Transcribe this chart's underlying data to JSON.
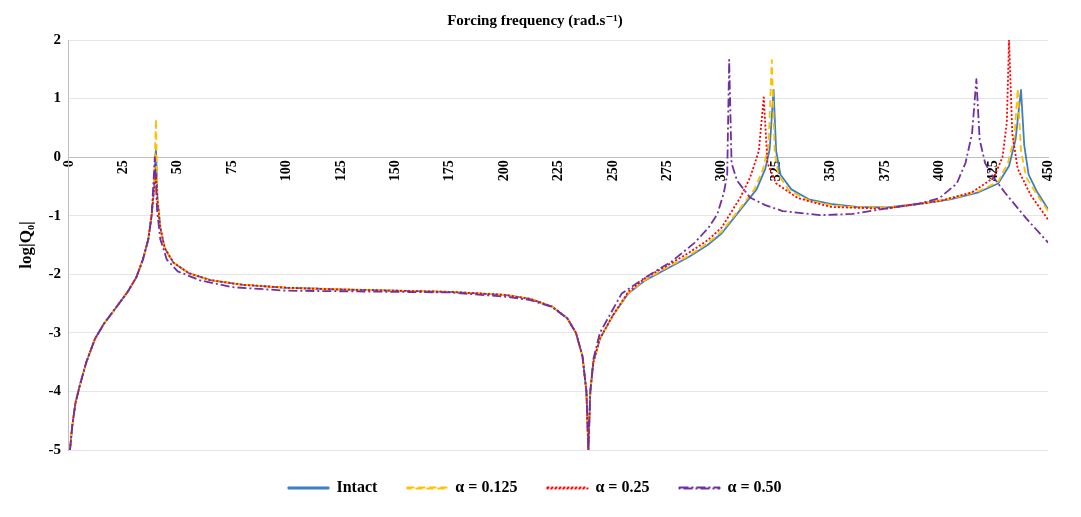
{
  "chart_data": {
    "type": "line",
    "xlabel": "Forcing frequency (rad.s⁻¹)",
    "ylabel": "log|Q₀|",
    "xlim": [
      0,
      450
    ],
    "xticks": [
      0,
      25,
      50,
      75,
      100,
      125,
      150,
      175,
      200,
      225,
      250,
      275,
      300,
      325,
      350,
      375,
      400,
      425,
      450
    ],
    "ylim": [
      -5,
      2
    ],
    "yticks": [
      -5,
      -4,
      -3,
      -2,
      -1,
      0,
      1,
      2
    ],
    "grid": "y",
    "legend": "bottom",
    "marker": "none",
    "series": [
      {
        "name": "Intact",
        "color": "#3d7fc4",
        "line_style": "solid",
        "x": [
          0.5,
          1.5,
          3,
          5,
          8,
          12,
          16,
          21,
          27,
          31,
          34,
          36.5,
          38,
          39,
          40,
          40.7,
          42,
          44,
          48,
          55,
          65,
          80,
          100,
          125,
          150,
          175,
          200,
          212,
          222,
          229,
          233,
          236,
          237.8,
          238.7,
          239.6,
          241,
          244,
          250,
          257,
          265,
          275,
          285,
          293.5,
          300,
          308.5,
          316,
          320,
          322,
          323.8,
          325,
          327,
          332,
          340,
          350,
          362,
          376,
          390,
          405,
          418,
          427,
          432,
          435,
          437.5,
          439,
          441,
          445,
          450
        ],
        "values": [
          -5,
          -4.6,
          -4.2,
          -3.9,
          -3.5,
          -3.1,
          -2.85,
          -2.6,
          -2.3,
          -2.05,
          -1.75,
          -1.4,
          -1.0,
          -0.6,
          0.15,
          -0.7,
          -1.2,
          -1.55,
          -1.8,
          -1.98,
          -2.1,
          -2.18,
          -2.23,
          -2.26,
          -2.28,
          -2.3,
          -2.35,
          -2.42,
          -2.55,
          -2.75,
          -3.0,
          -3.4,
          -4.0,
          -5,
          -4.0,
          -3.5,
          -3.1,
          -2.7,
          -2.33,
          -2.1,
          -1.9,
          -1.7,
          -1.5,
          -1.3,
          -0.9,
          -0.55,
          -0.2,
          0.13,
          1.15,
          0.1,
          -0.3,
          -0.55,
          -0.72,
          -0.8,
          -0.85,
          -0.86,
          -0.8,
          -0.72,
          -0.6,
          -0.45,
          -0.15,
          0.3,
          1.15,
          0.2,
          -0.3,
          -0.6,
          -0.89
        ]
      },
      {
        "name": "α = 0.125",
        "color": "#ffc000",
        "line_style": "dashed",
        "x": [
          0.5,
          1.5,
          3,
          5,
          8,
          12,
          16,
          21,
          27,
          31,
          34,
          36.5,
          38,
          39,
          40,
          40.7,
          42,
          44,
          48,
          55,
          65,
          80,
          100,
          125,
          150,
          175,
          200,
          212,
          222,
          229,
          233,
          236,
          237.8,
          238.7,
          239.6,
          241,
          244,
          250,
          257,
          265,
          275,
          285,
          293.5,
          300,
          308.5,
          315,
          319,
          321.5,
          323,
          324.3,
          326,
          331,
          340,
          350,
          362,
          376,
          390,
          405,
          418,
          427,
          431.5,
          434.5,
          436,
          437.5,
          440,
          445,
          450
        ],
        "values": [
          -5,
          -4.6,
          -4.2,
          -3.9,
          -3.5,
          -3.1,
          -2.85,
          -2.6,
          -2.3,
          -2.05,
          -1.75,
          -1.4,
          -1.0,
          -0.6,
          0.65,
          -0.7,
          -1.2,
          -1.55,
          -1.8,
          -1.98,
          -2.1,
          -2.18,
          -2.23,
          -2.26,
          -2.28,
          -2.3,
          -2.35,
          -2.42,
          -2.55,
          -2.75,
          -3.0,
          -3.4,
          -4.0,
          -5,
          -4.0,
          -3.5,
          -3.1,
          -2.7,
          -2.32,
          -2.09,
          -1.88,
          -1.68,
          -1.47,
          -1.27,
          -0.87,
          -0.55,
          -0.2,
          0.2,
          1.66,
          0.1,
          -0.3,
          -0.57,
          -0.74,
          -0.82,
          -0.86,
          -0.86,
          -0.8,
          -0.71,
          -0.58,
          -0.42,
          -0.1,
          0.35,
          1.17,
          0.1,
          -0.35,
          -0.65,
          -0.92
        ]
      },
      {
        "name": "α = 0.25",
        "color": "#ff0000",
        "line_style": "dotted",
        "x": [
          0.5,
          1.5,
          3,
          5,
          8,
          12,
          16,
          21,
          27,
          31,
          34,
          36.5,
          38,
          39,
          40,
          40.7,
          42,
          44,
          48,
          55,
          65,
          80,
          100,
          125,
          150,
          175,
          200,
          212,
          222,
          229,
          233,
          236,
          237.8,
          238.7,
          239.6,
          241,
          244,
          250,
          257,
          265,
          275,
          285,
          293.5,
          300,
          308.5,
          313,
          317,
          319.3,
          321,
          325,
          335,
          350,
          375,
          400,
          415,
          425,
          429,
          431,
          432,
          433.5,
          436,
          442,
          450
        ],
        "values": [
          -5,
          -4.6,
          -4.2,
          -3.9,
          -3.5,
          -3.1,
          -2.85,
          -2.6,
          -2.3,
          -2.05,
          -1.75,
          -1.4,
          -1.0,
          -0.6,
          -0.3,
          -0.75,
          -1.2,
          -1.55,
          -1.8,
          -1.98,
          -2.1,
          -2.18,
          -2.23,
          -2.26,
          -2.28,
          -2.3,
          -2.35,
          -2.42,
          -2.55,
          -2.75,
          -3.0,
          -3.4,
          -4.0,
          -5,
          -4.0,
          -3.5,
          -3.1,
          -2.7,
          -2.3,
          -2.06,
          -1.85,
          -1.63,
          -1.42,
          -1.2,
          -0.69,
          -0.35,
          0.1,
          1.02,
          -0.1,
          -0.45,
          -0.7,
          -0.85,
          -0.88,
          -0.75,
          -0.6,
          -0.35,
          0,
          0.6,
          2,
          0.4,
          -0.2,
          -0.65,
          -1.07
        ]
      },
      {
        "name": "α = 0.50",
        "color": "#7030a0",
        "line_style": "dashdot",
        "x": [
          0.5,
          1.5,
          3,
          5,
          8,
          12,
          16,
          21,
          27,
          31,
          34,
          36.5,
          38,
          39.5,
          40.5,
          42,
          45,
          50,
          60,
          75,
          100,
          150,
          175,
          200,
          212,
          222,
          229,
          233,
          236,
          237.8,
          238.7,
          239.6,
          241,
          244,
          254,
          265,
          277,
          287.6,
          294,
          298,
          301,
          302.5,
          303.4,
          304.5,
          307,
          313,
          320,
          328,
          345,
          360,
          375,
          390,
          400,
          408,
          412,
          415,
          417,
          418.5,
          421,
          424,
          430,
          440,
          450
        ],
        "values": [
          -5,
          -4.6,
          -4.2,
          -3.9,
          -3.5,
          -3.1,
          -2.85,
          -2.6,
          -2.3,
          -2.05,
          -1.75,
          -1.4,
          -1.0,
          0.0,
          -0.9,
          -1.4,
          -1.75,
          -1.95,
          -2.1,
          -2.22,
          -2.28,
          -2.3,
          -2.31,
          -2.38,
          -2.44,
          -2.56,
          -2.75,
          -3.0,
          -3.4,
          -4.0,
          -5,
          -4.0,
          -3.45,
          -3.0,
          -2.33,
          -2.05,
          -1.78,
          -1.46,
          -1.2,
          -0.97,
          -0.6,
          -0.3,
          1.66,
          -0.1,
          -0.4,
          -0.69,
          -0.82,
          -0.92,
          -0.99,
          -0.97,
          -0.88,
          -0.8,
          -0.7,
          -0.45,
          -0.1,
          0.4,
          1.33,
          0.3,
          -0.1,
          -0.3,
          -0.6,
          -1.05,
          -1.46
        ]
      }
    ]
  }
}
